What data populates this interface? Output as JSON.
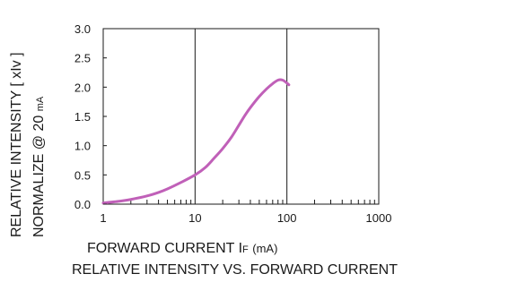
{
  "chart_data": {
    "type": "line",
    "title": "RELATIVE INTENSITY VS. FORWARD CURRENT",
    "xlabel": {
      "main": "FORWARD CURRENT I",
      "sub": "F",
      "unit": "(mA)"
    },
    "ylabel": {
      "line1": "RELATIVE INTENSITY [ xIv ]",
      "line2a": "NORMALIZE @ 20 ",
      "line2b": "mA"
    },
    "x_scale": "log",
    "xlim": [
      1,
      1000
    ],
    "ylim": [
      0,
      3.0
    ],
    "x_ticks": [
      1,
      10,
      100,
      1000
    ],
    "x_tick_labels": [
      "1",
      "10",
      "100",
      "1000"
    ],
    "y_ticks": [
      0,
      0.5,
      1.0,
      1.5,
      2.0,
      2.5,
      3.0
    ],
    "y_tick_labels": [
      "0.0",
      "0.5",
      "1.0",
      "1.5",
      "2.0",
      "2.5",
      "3.0"
    ],
    "grid": true,
    "line_color": "#c060b8",
    "series": [
      {
        "x": [
          1,
          1.5,
          2,
          3,
          4,
          5,
          7,
          10,
          13,
          16,
          20,
          25,
          30,
          35,
          40,
          50,
          60,
          70,
          80,
          90,
          100,
          105
        ],
        "y": [
          0.02,
          0.05,
          0.08,
          0.14,
          0.2,
          0.26,
          0.37,
          0.5,
          0.63,
          0.78,
          0.95,
          1.15,
          1.35,
          1.52,
          1.65,
          1.84,
          1.97,
          2.06,
          2.12,
          2.12,
          2.07,
          2.04
        ]
      }
    ]
  }
}
